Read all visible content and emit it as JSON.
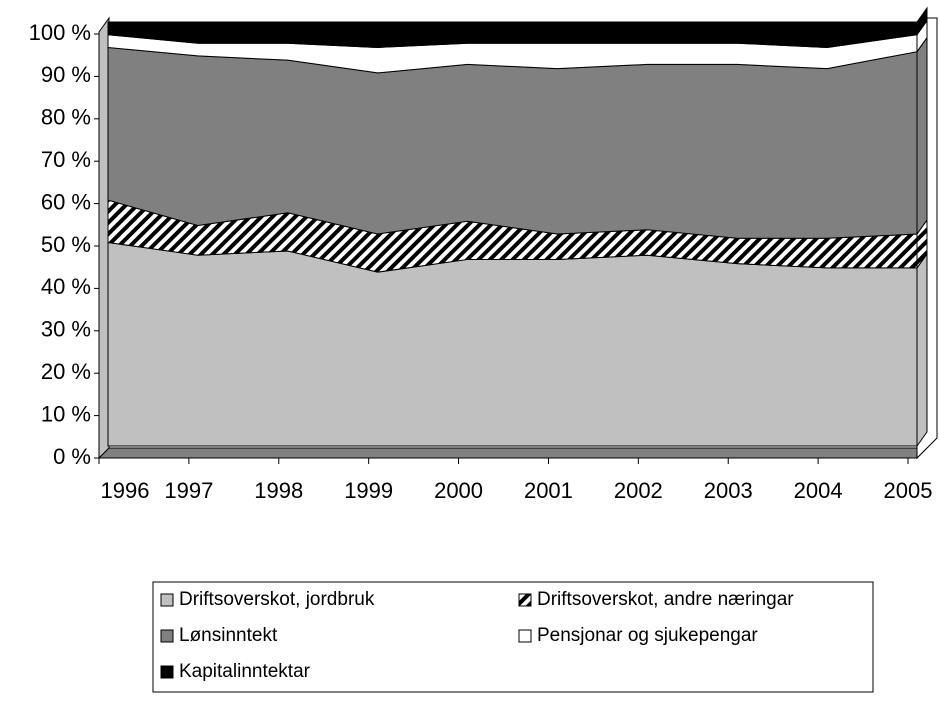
{
  "chart_data": {
    "type": "stacked-area",
    "categories": [
      "1996",
      "1997",
      "1998",
      "1999",
      "2000",
      "2001",
      "2002",
      "2003",
      "2004",
      "2005"
    ],
    "series": [
      {
        "name": "Driftsoverskot, jordbruk",
        "color": "#c0c0c0",
        "values": [
          48,
          45,
          46,
          41,
          44,
          44,
          45,
          43,
          42,
          42
        ]
      },
      {
        "name": "Driftsoverskot, andre næringar",
        "color": "#000000",
        "pattern": "diagonal-hatch",
        "values": [
          10,
          7,
          9,
          9,
          9,
          6,
          6,
          6,
          7,
          8
        ]
      },
      {
        "name": "Lønsinntekt",
        "color": "#808080",
        "values": [
          36,
          40,
          36,
          38,
          37,
          39,
          39,
          41,
          40,
          43
        ]
      },
      {
        "name": "Pensjonar og sjukepengar",
        "color": "#ffffff",
        "values": [
          3,
          3,
          4,
          6,
          5,
          6,
          5,
          5,
          5,
          4
        ]
      },
      {
        "name": "Kapitalinntektar",
        "color": "#000000",
        "values": [
          3,
          5,
          5,
          6,
          5,
          5,
          5,
          5,
          6,
          3
        ]
      }
    ],
    "ylim": [
      0,
      100
    ],
    "yticks": [
      {
        "value": 0,
        "label": "0 %"
      },
      {
        "value": 10,
        "label": "10 %"
      },
      {
        "value": 20,
        "label": "20 %"
      },
      {
        "value": 30,
        "label": "30 %"
      },
      {
        "value": 40,
        "label": "40 %"
      },
      {
        "value": 50,
        "label": "50 %"
      },
      {
        "value": 60,
        "label": "60 %"
      },
      {
        "value": 70,
        "label": "70 %"
      },
      {
        "value": 80,
        "label": "80 %"
      },
      {
        "value": 90,
        "label": "90 %"
      },
      {
        "value": 100,
        "label": "100 %"
      }
    ],
    "legend": "bottom"
  }
}
